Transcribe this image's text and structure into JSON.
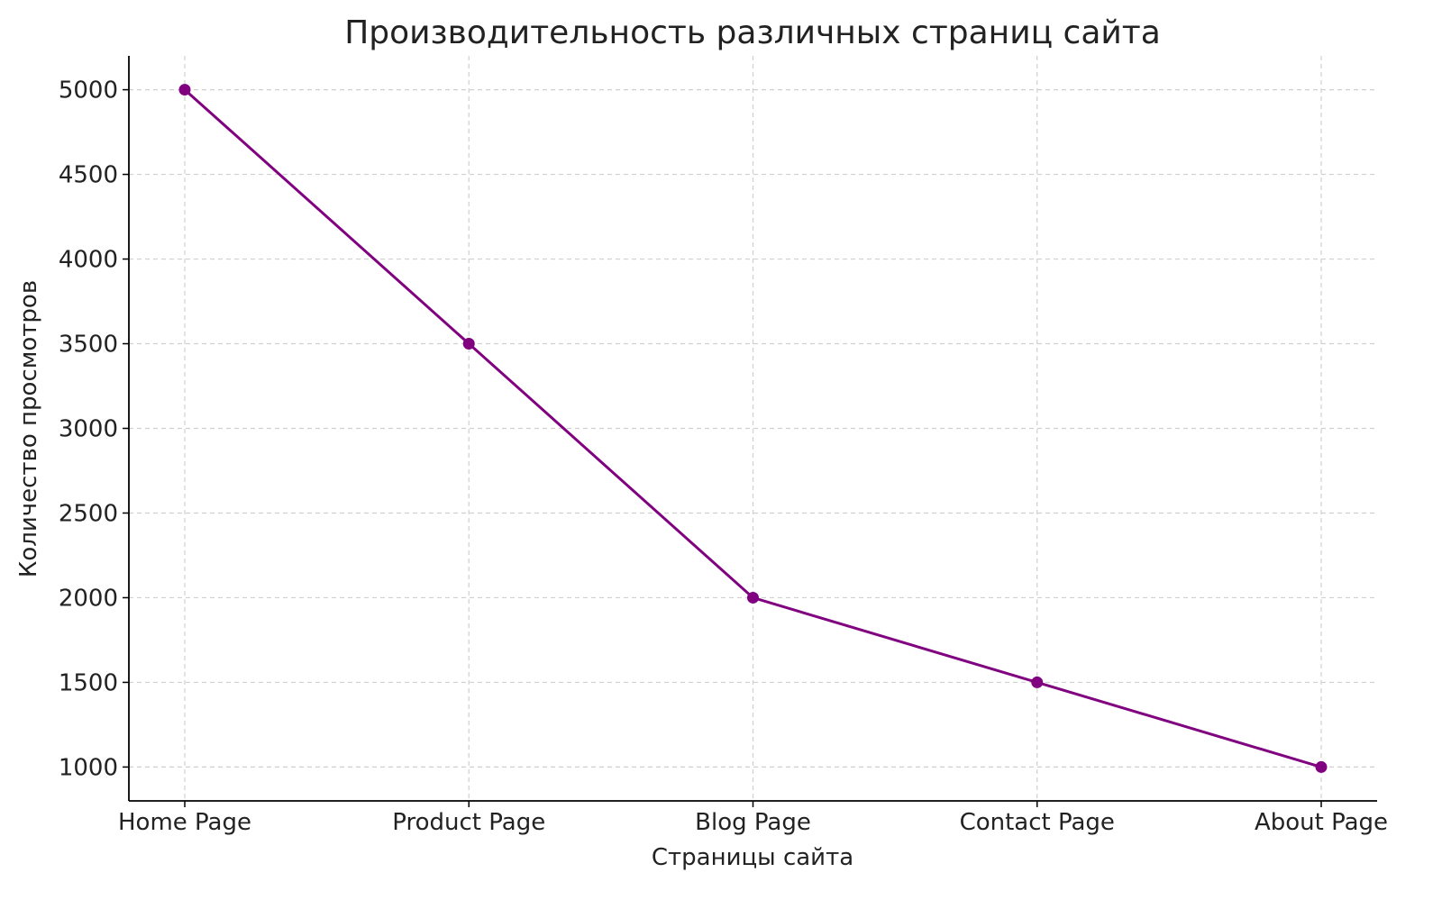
{
  "chart_data": {
    "type": "line",
    "title": "Производительность различных страниц сайта",
    "xlabel": "Страницы сайта",
    "ylabel": "Количество просмотров",
    "categories": [
      "Home Page",
      "Product Page",
      "Blog Page",
      "Contact Page",
      "About Page"
    ],
    "values": [
      5000,
      3500,
      2000,
      1500,
      1000
    ],
    "ylim": [
      800,
      5200
    ],
    "yticks": [
      1000,
      1500,
      2000,
      2500,
      3000,
      3500,
      4000,
      4500,
      5000
    ],
    "grid": true,
    "grid_style": "dashed",
    "marker": "circle",
    "color": "#800080"
  }
}
